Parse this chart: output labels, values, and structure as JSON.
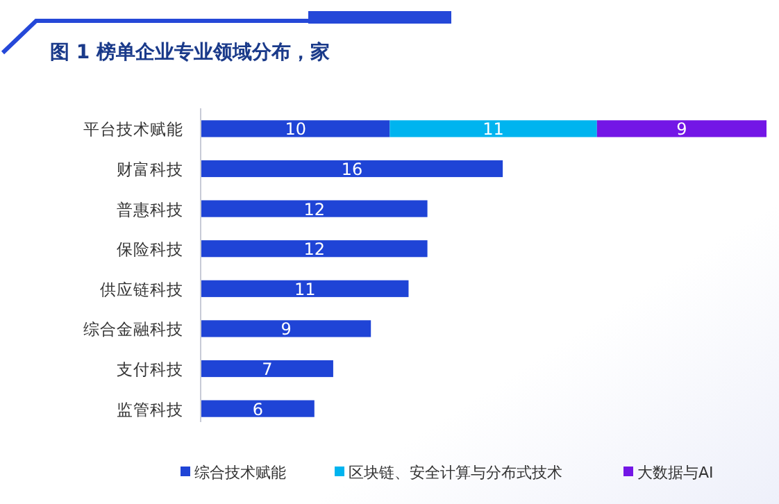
{
  "chart_data": {
    "type": "bar",
    "orientation": "horizontal",
    "stacked": true,
    "title": "图 1 榜单企业专业领域分布，家",
    "categories": [
      "平台技术赋能",
      "财富科技",
      "普惠科技",
      "保险科技",
      "供应链科技",
      "综合金融科技",
      "支付科技",
      "监管科技"
    ],
    "series": [
      {
        "name": "综合技术赋能",
        "color": "#1f44d6",
        "values": [
          10,
          16,
          12,
          12,
          11,
          9,
          7,
          6
        ]
      },
      {
        "name": "区块链、安全计算与分布式技术",
        "color": "#00b4ef",
        "values": [
          11,
          null,
          null,
          null,
          null,
          null,
          null,
          null
        ]
      },
      {
        "name": "大数据与AI",
        "color": "#7316e6",
        "values": [
          9,
          null,
          null,
          null,
          null,
          null,
          null,
          null
        ]
      }
    ],
    "data_labels": true,
    "legend": "bottom",
    "grid": false
  }
}
